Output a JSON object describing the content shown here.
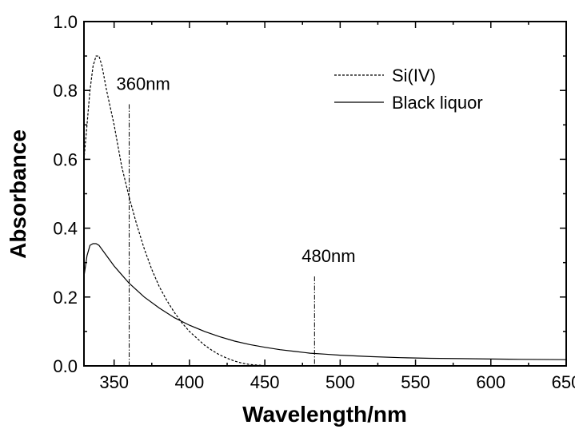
{
  "chart_data": {
    "type": "line",
    "title": "",
    "xlabel": "Wavelength/nm",
    "ylabel": "Absorbance",
    "xlim": [
      330,
      650
    ],
    "ylim": [
      0.0,
      1.0
    ],
    "x_ticks": [
      "350",
      "400",
      "450",
      "500",
      "550",
      "600",
      "650"
    ],
    "y_ticks": [
      "0.0",
      "0.2",
      "0.4",
      "0.6",
      "0.8",
      "1.0"
    ],
    "grid": false,
    "legend_position": "top-right",
    "series": [
      {
        "name": "Si(IV)",
        "line_style": "dashed",
        "color": "#000000",
        "points": [
          [
            330,
            0.6
          ],
          [
            332,
            0.7
          ],
          [
            334,
            0.8
          ],
          [
            336,
            0.87
          ],
          [
            338,
            0.9
          ],
          [
            340,
            0.9
          ],
          [
            342,
            0.87
          ],
          [
            345,
            0.8
          ],
          [
            350,
            0.7
          ],
          [
            355,
            0.58
          ],
          [
            360,
            0.49
          ],
          [
            365,
            0.41
          ],
          [
            370,
            0.34
          ],
          [
            375,
            0.28
          ],
          [
            380,
            0.23
          ],
          [
            385,
            0.19
          ],
          [
            390,
            0.155
          ],
          [
            395,
            0.125
          ],
          [
            400,
            0.1
          ],
          [
            405,
            0.08
          ],
          [
            410,
            0.06
          ],
          [
            415,
            0.045
          ],
          [
            420,
            0.032
          ],
          [
            425,
            0.022
          ],
          [
            430,
            0.014
          ],
          [
            435,
            0.008
          ],
          [
            440,
            0.004
          ],
          [
            450,
            0.001
          ],
          [
            460,
            0.0
          ]
        ]
      },
      {
        "name": "Black liquor",
        "line_style": "solid",
        "color": "#000000",
        "points": [
          [
            330,
            0.26
          ],
          [
            332,
            0.32
          ],
          [
            334,
            0.35
          ],
          [
            336,
            0.355
          ],
          [
            338,
            0.355
          ],
          [
            340,
            0.35
          ],
          [
            345,
            0.32
          ],
          [
            350,
            0.29
          ],
          [
            355,
            0.265
          ],
          [
            360,
            0.24
          ],
          [
            370,
            0.2
          ],
          [
            380,
            0.168
          ],
          [
            390,
            0.14
          ],
          [
            400,
            0.118
          ],
          [
            410,
            0.1
          ],
          [
            420,
            0.085
          ],
          [
            430,
            0.072
          ],
          [
            440,
            0.062
          ],
          [
            450,
            0.054
          ],
          [
            460,
            0.047
          ],
          [
            470,
            0.042
          ],
          [
            480,
            0.037
          ],
          [
            490,
            0.034
          ],
          [
            500,
            0.031
          ],
          [
            520,
            0.027
          ],
          [
            540,
            0.024
          ],
          [
            560,
            0.022
          ],
          [
            580,
            0.021
          ],
          [
            600,
            0.02
          ],
          [
            620,
            0.019
          ],
          [
            650,
            0.018
          ]
        ]
      }
    ],
    "annotations": [
      {
        "text": "360nm",
        "x": 360,
        "line_y_top": 0.76
      },
      {
        "text": "480nm",
        "x": 483,
        "line_y_top": 0.26
      }
    ]
  }
}
